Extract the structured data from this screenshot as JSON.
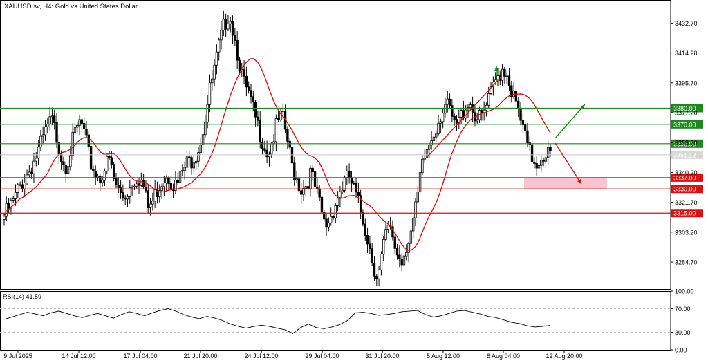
{
  "window": {
    "title": "XAUUSD.sv, H4:  Gold vs United States Dollar"
  },
  "chart_data": [
    {
      "type": "candlestick",
      "symbol": "XAUUSD.sv",
      "timeframe": "H4",
      "title": "XAUUSD.sv, H4:  Gold vs United States Dollar",
      "ylim": [
        3268,
        3447
      ],
      "y_ticks": [
        {
          "value": 3432.7,
          "label": "3432.70"
        },
        {
          "value": 3414.2,
          "label": "3414.20"
        },
        {
          "value": 3395.7,
          "label": "3395.70"
        },
        {
          "value": 3377.2,
          "label": "3377.20"
        },
        {
          "value": 3358.7,
          "label": "3358.70"
        },
        {
          "value": 3340.2,
          "label": "3340.20"
        },
        {
          "value": 3321.7,
          "label": "3321.70"
        },
        {
          "value": 3303.2,
          "label": "3303.20"
        },
        {
          "value": 3284.7,
          "label": "3284.70"
        }
      ],
      "x_ticks": [
        "9 Jul 2025",
        "14 Jul 12:00",
        "17 Jul 04:00",
        "21 Jul 20:00",
        "24 Jul 12:00",
        "29 Jul 04:00",
        "31 Jul 20:00",
        "5 Aug 12:00",
        "8 Aug 04:00",
        "12 Aug 20:00"
      ],
      "current_price": {
        "value": 3351.12,
        "label": "3351.12"
      },
      "horizontal_levels": [
        {
          "value": 3380.0,
          "label": "3380.00",
          "color": "#1a8a1a"
        },
        {
          "value": 3370.0,
          "label": "3370.00",
          "color": "#1a8a1a"
        },
        {
          "value": 3358.0,
          "label": "3358.00",
          "color": "#1a8a1a"
        },
        {
          "value": 3337.0,
          "label": "3337.00",
          "color": "#e01010"
        },
        {
          "value": 3330.0,
          "label": "3330.00",
          "color": "#e01010"
        },
        {
          "value": 3315.0,
          "label": "3315.00",
          "color": "#e01010"
        }
      ],
      "highlight_zone": {
        "from": 3330,
        "to": 3337,
        "color": "#f8b8c8"
      },
      "moving_average_color": "#e01010",
      "up_color": "#ffffff",
      "down_color": "#000000",
      "trend_colors": {
        "bullish": "#1a8a1a",
        "bearish": "#e01010"
      },
      "anchors": [
        3313,
        3318,
        3322,
        3330,
        3335,
        3340,
        3346,
        3352,
        3360,
        3368,
        3372,
        3362,
        3350,
        3345,
        3356,
        3366,
        3372,
        3360,
        3346,
        3340,
        3337,
        3343,
        3348,
        3334,
        3328,
        3325,
        3330,
        3336,
        3338,
        3332,
        3318,
        3322,
        3330,
        3336,
        3340,
        3335,
        3331,
        3339,
        3345,
        3348,
        3352,
        3360,
        3375,
        3392,
        3405,
        3420,
        3432,
        3440,
        3425,
        3410,
        3395,
        3388,
        3378,
        3368,
        3360,
        3352,
        3360,
        3370,
        3375,
        3362,
        3345,
        3337,
        3330,
        3333,
        3340,
        3329,
        3318,
        3306,
        3312,
        3320,
        3328,
        3334,
        3337,
        3329,
        3320,
        3310,
        3298,
        3284,
        3275,
        3292,
        3305,
        3301,
        3290,
        3286,
        3296,
        3305,
        3318,
        3340,
        3352,
        3360,
        3368,
        3376,
        3382,
        3378,
        3368,
        3372,
        3380,
        3385,
        3378,
        3372,
        3376,
        3383,
        3392,
        3400,
        3405,
        3402,
        3390,
        3380,
        3370,
        3358,
        3350,
        3346,
        3350,
        3353,
        3351
      ]
    },
    {
      "type": "line",
      "indicator": "RSI(14)",
      "header": "RSI(14) 41.59",
      "ylim": [
        0,
        100
      ],
      "y_ticks": [
        {
          "value": 100,
          "label": "100.00"
        },
        {
          "value": 70,
          "label": "70.00"
        },
        {
          "value": 30,
          "label": "30.00"
        },
        {
          "value": 0,
          "label": "0.00"
        }
      ],
      "line_color": "#000000",
      "values": [
        52,
        56,
        60,
        64,
        61,
        58,
        63,
        66,
        62,
        58,
        55,
        59,
        62,
        58,
        54,
        60,
        65,
        62,
        58,
        63,
        67,
        70,
        66,
        60,
        56,
        53,
        57,
        54,
        50,
        44,
        40,
        37,
        40,
        42,
        40,
        37,
        34,
        28,
        38,
        44,
        38,
        36,
        39,
        43,
        50,
        63,
        64,
        62,
        59,
        60,
        62,
        65,
        66,
        67,
        60,
        56,
        58,
        62,
        66,
        67,
        64,
        61,
        57,
        55,
        51,
        47,
        45,
        41,
        39,
        40,
        41.59
      ]
    }
  ]
}
